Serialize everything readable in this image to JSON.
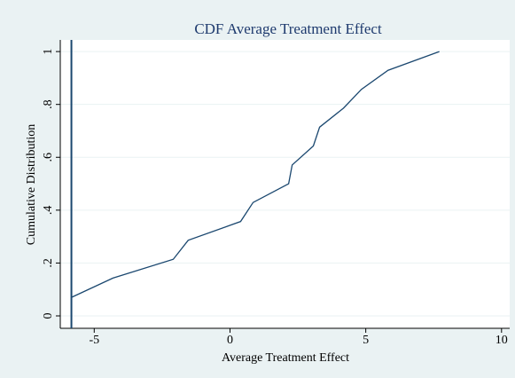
{
  "chart_data": {
    "type": "line",
    "title": "CDF Average Treatment Effect",
    "x_label": "Average Treatment Effect",
    "y_label": "Cumulative Distribution",
    "x": [
      -5.82,
      -4.31,
      -2.09,
      -1.54,
      0.39,
      0.85,
      2.16,
      2.29,
      3.07,
      3.3,
      4.18,
      4.84,
      5.82,
      7.71
    ],
    "series": [
      {
        "name": "CDF",
        "color": "#1a476f",
        "values": [
          0.071,
          0.143,
          0.214,
          0.286,
          0.357,
          0.429,
          0.5,
          0.571,
          0.643,
          0.714,
          0.786,
          0.857,
          0.929,
          1
        ]
      }
    ],
    "xline": -5.84,
    "xlim": [
      -6.25,
      10.3
    ],
    "xticks": [
      -5,
      0,
      5,
      10
    ],
    "ylim": [
      -0.047,
      1.044
    ],
    "yticks": [
      0,
      {
        "value": 0.2,
        "label": ".2"
      },
      {
        "value": 0.4,
        "label": ".4"
      },
      {
        "value": 0.6,
        "label": ".6"
      },
      {
        "value": 0.8,
        "label": ".8"
      },
      1
    ],
    "grid": true
  }
}
